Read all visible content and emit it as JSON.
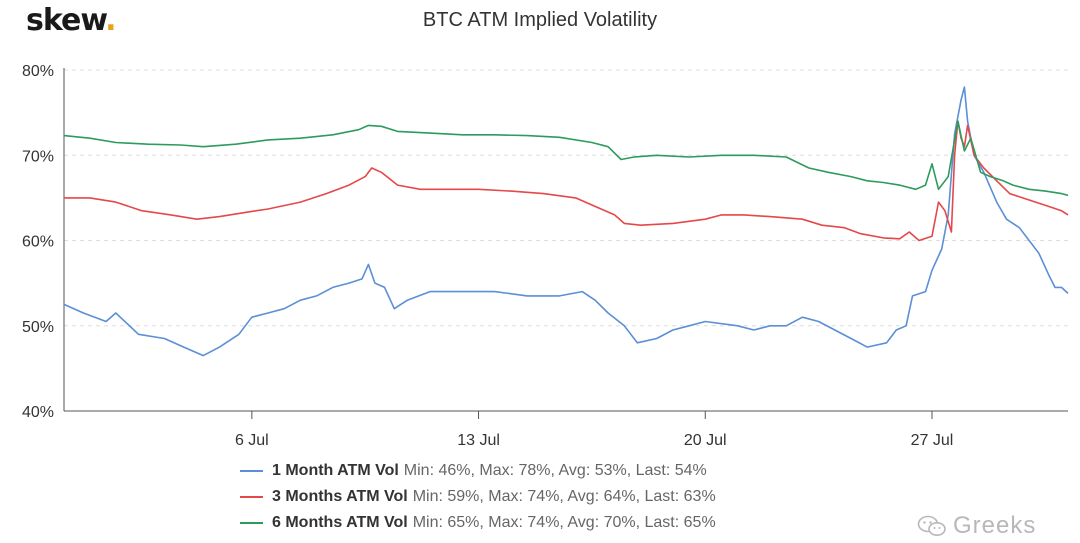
{
  "logo": {
    "text": "skew",
    "dot": "."
  },
  "chart_data": {
    "type": "line",
    "title": "BTC ATM Implied Volatility",
    "xlabel": "",
    "ylabel": "",
    "x_range_days": [
      0.2,
      31.2
    ],
    "x_ticks": [
      {
        "label": "6 Jul",
        "day": 6
      },
      {
        "label": "13 Jul",
        "day": 13
      },
      {
        "label": "20 Jul",
        "day": 20
      },
      {
        "label": "27 Jul",
        "day": 27
      }
    ],
    "ylim": [
      40,
      80
    ],
    "y_ticks": [
      {
        "label": "40%",
        "value": 40
      },
      {
        "label": "50%",
        "value": 50
      },
      {
        "label": "60%",
        "value": 60
      },
      {
        "label": "70%",
        "value": 70
      },
      {
        "label": "80%",
        "value": 80
      }
    ],
    "grid": "horizontal-dashed",
    "legend_position": "bottom",
    "series": [
      {
        "name": "1 Month ATM Vol",
        "stats": "Min: 46%, Max: 78%, Avg: 53%, Last: 54%",
        "color": "#5b8fd6",
        "points": [
          [
            0.2,
            52.5
          ],
          [
            0.8,
            51.5
          ],
          [
            1.5,
            50.5
          ],
          [
            1.8,
            51.5
          ],
          [
            2.5,
            49
          ],
          [
            3.3,
            48.5
          ],
          [
            3.9,
            47.5
          ],
          [
            4.5,
            46.5
          ],
          [
            5.0,
            47.5
          ],
          [
            5.6,
            49
          ],
          [
            6.0,
            51
          ],
          [
            6.5,
            51.5
          ],
          [
            7.0,
            52
          ],
          [
            7.5,
            53
          ],
          [
            8.0,
            53.5
          ],
          [
            8.5,
            54.5
          ],
          [
            9.0,
            55
          ],
          [
            9.4,
            55.5
          ],
          [
            9.6,
            57.2
          ],
          [
            9.8,
            55
          ],
          [
            10.1,
            54.5
          ],
          [
            10.4,
            52
          ],
          [
            10.8,
            53
          ],
          [
            11.5,
            54
          ],
          [
            12.5,
            54
          ],
          [
            13.5,
            54
          ],
          [
            14.5,
            53.5
          ],
          [
            15.5,
            53.5
          ],
          [
            16.2,
            54
          ],
          [
            16.6,
            53
          ],
          [
            17.0,
            51.5
          ],
          [
            17.5,
            50
          ],
          [
            17.9,
            48
          ],
          [
            18.5,
            48.5
          ],
          [
            19.0,
            49.5
          ],
          [
            19.5,
            50
          ],
          [
            20.0,
            50.5
          ],
          [
            21.0,
            50
          ],
          [
            21.5,
            49.5
          ],
          [
            22.0,
            50
          ],
          [
            22.5,
            50
          ],
          [
            23.0,
            51
          ],
          [
            23.5,
            50.5
          ],
          [
            24.0,
            49.5
          ],
          [
            24.5,
            48.5
          ],
          [
            25.0,
            47.5
          ],
          [
            25.6,
            48
          ],
          [
            25.9,
            49.5
          ],
          [
            26.2,
            50
          ],
          [
            26.4,
            53.5
          ],
          [
            26.8,
            54
          ],
          [
            27.0,
            56.5
          ],
          [
            27.3,
            59
          ],
          [
            27.5,
            63
          ],
          [
            27.7,
            72.5
          ],
          [
            27.9,
            76.5
          ],
          [
            28.0,
            78
          ],
          [
            28.1,
            74
          ],
          [
            28.3,
            70
          ],
          [
            28.6,
            68
          ],
          [
            29.0,
            64.5
          ],
          [
            29.3,
            62.5
          ],
          [
            29.7,
            61.5
          ],
          [
            30.0,
            60
          ],
          [
            30.3,
            58.5
          ],
          [
            30.6,
            56
          ],
          [
            30.8,
            54.5
          ],
          [
            31.0,
            54.5
          ],
          [
            31.2,
            53.8
          ]
        ]
      },
      {
        "name": "3 Months ATM Vol",
        "stats": "Min: 59%, Max: 74%, Avg: 64%, Last: 63%",
        "color": "#e5484a",
        "points": [
          [
            0.2,
            65
          ],
          [
            1.0,
            65
          ],
          [
            1.8,
            64.5
          ],
          [
            2.6,
            63.5
          ],
          [
            3.5,
            63
          ],
          [
            4.3,
            62.5
          ],
          [
            5.0,
            62.8
          ],
          [
            5.8,
            63.3
          ],
          [
            6.5,
            63.7
          ],
          [
            7.5,
            64.5
          ],
          [
            8.3,
            65.5
          ],
          [
            9.0,
            66.5
          ],
          [
            9.5,
            67.5
          ],
          [
            9.7,
            68.5
          ],
          [
            10.0,
            68
          ],
          [
            10.5,
            66.5
          ],
          [
            11.2,
            66
          ],
          [
            12.0,
            66
          ],
          [
            13.0,
            66
          ],
          [
            14.0,
            65.8
          ],
          [
            15.0,
            65.5
          ],
          [
            16.0,
            65
          ],
          [
            16.6,
            64
          ],
          [
            17.2,
            63
          ],
          [
            17.5,
            62
          ],
          [
            18.0,
            61.8
          ],
          [
            19.0,
            62
          ],
          [
            20.0,
            62.5
          ],
          [
            20.5,
            63
          ],
          [
            21.2,
            63
          ],
          [
            22.0,
            62.8
          ],
          [
            23.0,
            62.5
          ],
          [
            23.6,
            61.8
          ],
          [
            24.3,
            61.5
          ],
          [
            24.8,
            60.8
          ],
          [
            25.5,
            60.3
          ],
          [
            26.0,
            60.2
          ],
          [
            26.3,
            61
          ],
          [
            26.6,
            60
          ],
          [
            27.0,
            60.5
          ],
          [
            27.2,
            64.5
          ],
          [
            27.4,
            63.5
          ],
          [
            27.6,
            61
          ],
          [
            27.7,
            70
          ],
          [
            27.8,
            74
          ],
          [
            27.9,
            72
          ],
          [
            28.0,
            71
          ],
          [
            28.1,
            73.5
          ],
          [
            28.3,
            70
          ],
          [
            28.6,
            68.5
          ],
          [
            29.0,
            67
          ],
          [
            29.4,
            65.5
          ],
          [
            29.8,
            65
          ],
          [
            30.2,
            64.5
          ],
          [
            30.6,
            64
          ],
          [
            31.0,
            63.5
          ],
          [
            31.2,
            63
          ]
        ]
      },
      {
        "name": "6 Months ATM Vol",
        "stats": "Min: 65%, Max: 74%, Avg: 70%, Last: 65%",
        "color": "#2e9b5e",
        "points": [
          [
            0.2,
            72.3
          ],
          [
            1.0,
            72
          ],
          [
            1.8,
            71.5
          ],
          [
            2.8,
            71.3
          ],
          [
            3.8,
            71.2
          ],
          [
            4.5,
            71
          ],
          [
            5.5,
            71.3
          ],
          [
            6.5,
            71.8
          ],
          [
            7.5,
            72
          ],
          [
            8.5,
            72.4
          ],
          [
            9.3,
            73
          ],
          [
            9.6,
            73.5
          ],
          [
            10.0,
            73.4
          ],
          [
            10.5,
            72.8
          ],
          [
            11.5,
            72.6
          ],
          [
            12.5,
            72.4
          ],
          [
            13.5,
            72.4
          ],
          [
            14.5,
            72.3
          ],
          [
            15.5,
            72.1
          ],
          [
            16.5,
            71.5
          ],
          [
            17.0,
            71
          ],
          [
            17.4,
            69.5
          ],
          [
            17.8,
            69.8
          ],
          [
            18.5,
            70
          ],
          [
            19.5,
            69.8
          ],
          [
            20.5,
            70
          ],
          [
            21.5,
            70
          ],
          [
            22.5,
            69.8
          ],
          [
            23.2,
            68.5
          ],
          [
            23.8,
            68
          ],
          [
            24.5,
            67.5
          ],
          [
            25.0,
            67
          ],
          [
            25.5,
            66.8
          ],
          [
            26.0,
            66.5
          ],
          [
            26.5,
            66
          ],
          [
            26.8,
            66.5
          ],
          [
            27.0,
            69
          ],
          [
            27.2,
            66
          ],
          [
            27.5,
            67.5
          ],
          [
            27.8,
            74
          ],
          [
            28.0,
            70.5
          ],
          [
            28.2,
            72
          ],
          [
            28.5,
            68
          ],
          [
            28.8,
            67.5
          ],
          [
            29.2,
            67
          ],
          [
            29.5,
            66.5
          ],
          [
            30.0,
            66
          ],
          [
            30.5,
            65.8
          ],
          [
            31.0,
            65.5
          ],
          [
            31.2,
            65.3
          ]
        ]
      }
    ]
  },
  "watermark": {
    "text": "Greeks"
  }
}
